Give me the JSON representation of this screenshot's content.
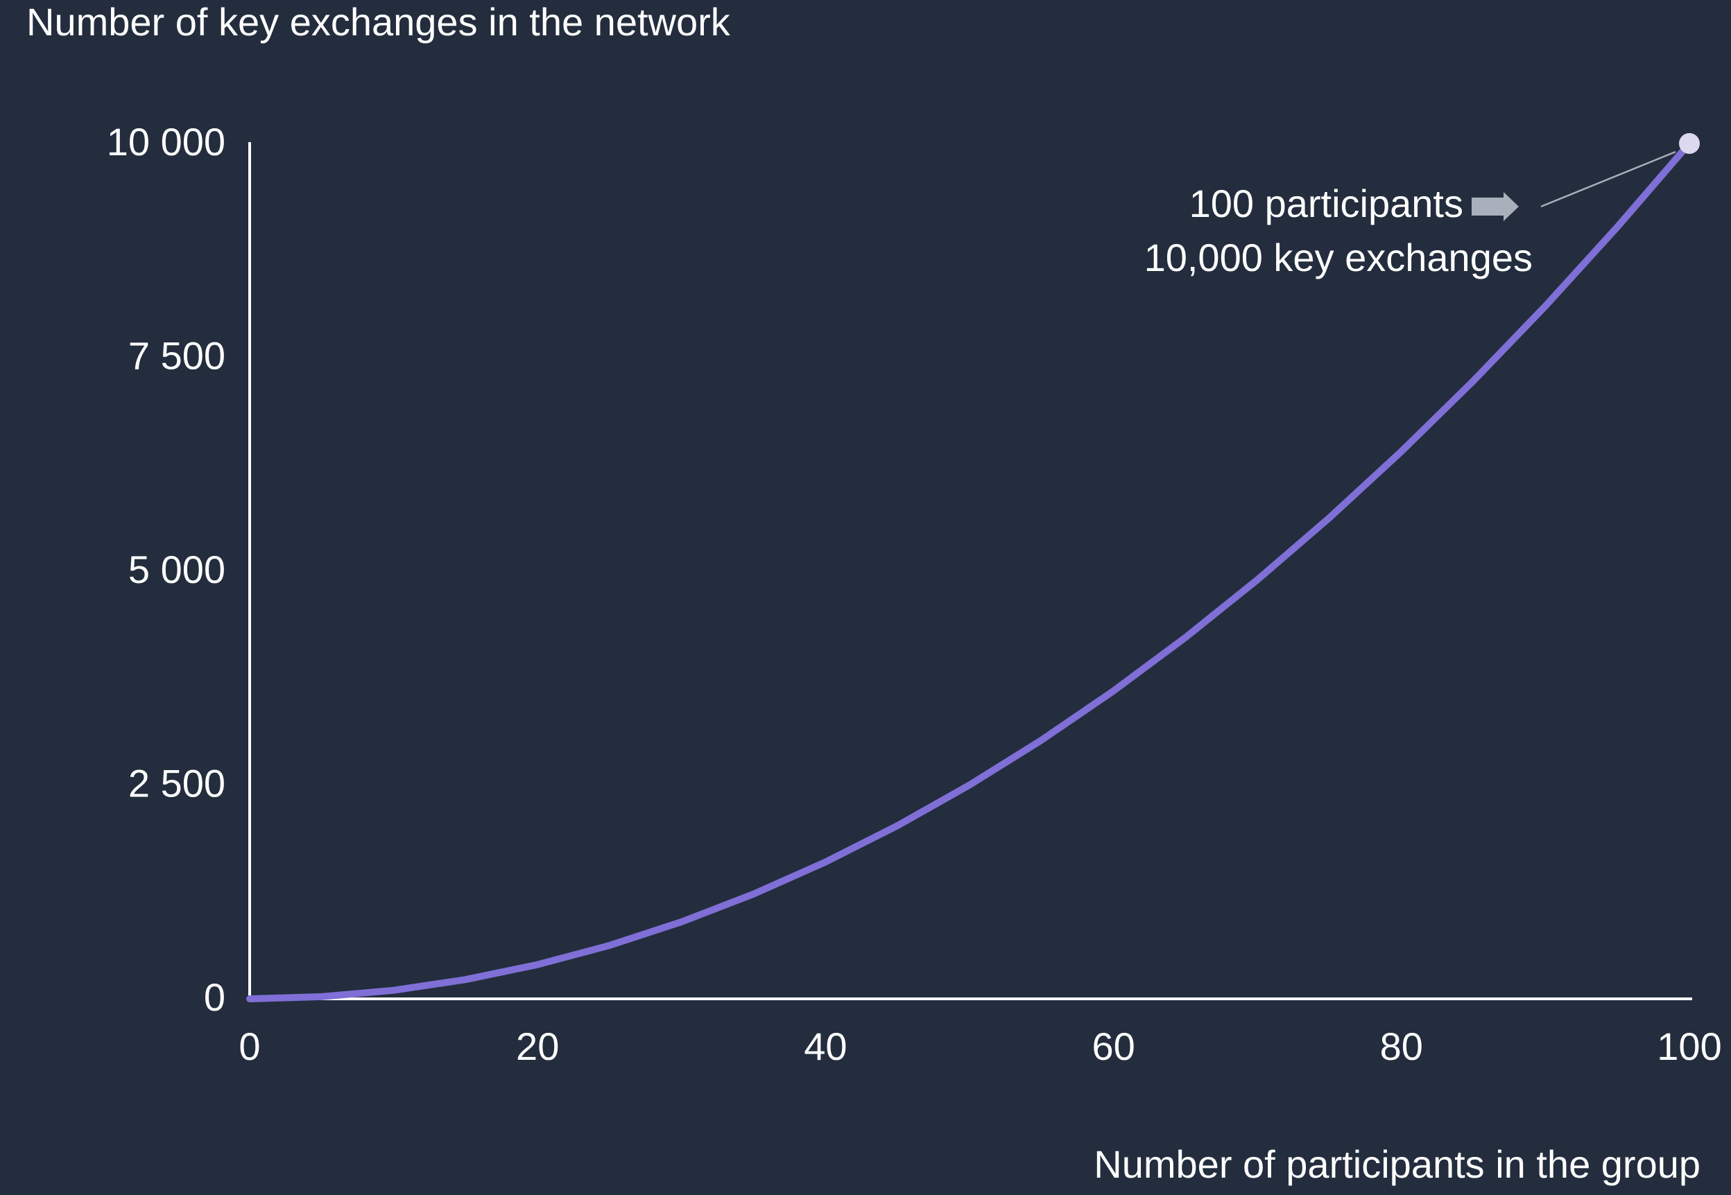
{
  "chart_data": {
    "type": "line",
    "y_axis_label": "Number of key exchanges in the network",
    "x_axis_label": "Number of participants in the group",
    "x": [
      0,
      5,
      10,
      15,
      20,
      25,
      30,
      35,
      40,
      45,
      50,
      55,
      60,
      65,
      70,
      75,
      80,
      85,
      90,
      95,
      100
    ],
    "values": [
      0,
      25,
      100,
      225,
      400,
      625,
      900,
      1225,
      1600,
      2025,
      2500,
      3025,
      3600,
      4225,
      4900,
      5625,
      6400,
      7225,
      8100,
      9025,
      10000
    ],
    "color": "#7f6fd6",
    "xlim": [
      0,
      100
    ],
    "ylim": [
      0,
      10000
    ],
    "xticks": [
      0,
      20,
      40,
      60,
      80,
      100
    ],
    "yticks": [
      0,
      {
        "value": 2500,
        "label": "2 500"
      },
      {
        "value": 5000,
        "label": "5 000"
      },
      {
        "value": 7500,
        "label": "7 500"
      },
      {
        "value": 10000,
        "label": "10 000"
      }
    ],
    "grid": false,
    "annotation": {
      "lines": [
        "100 participants",
        "10,000 key exchanges"
      ],
      "x": 100,
      "y": 10000,
      "marker_color": "#dcd8ee"
    }
  }
}
